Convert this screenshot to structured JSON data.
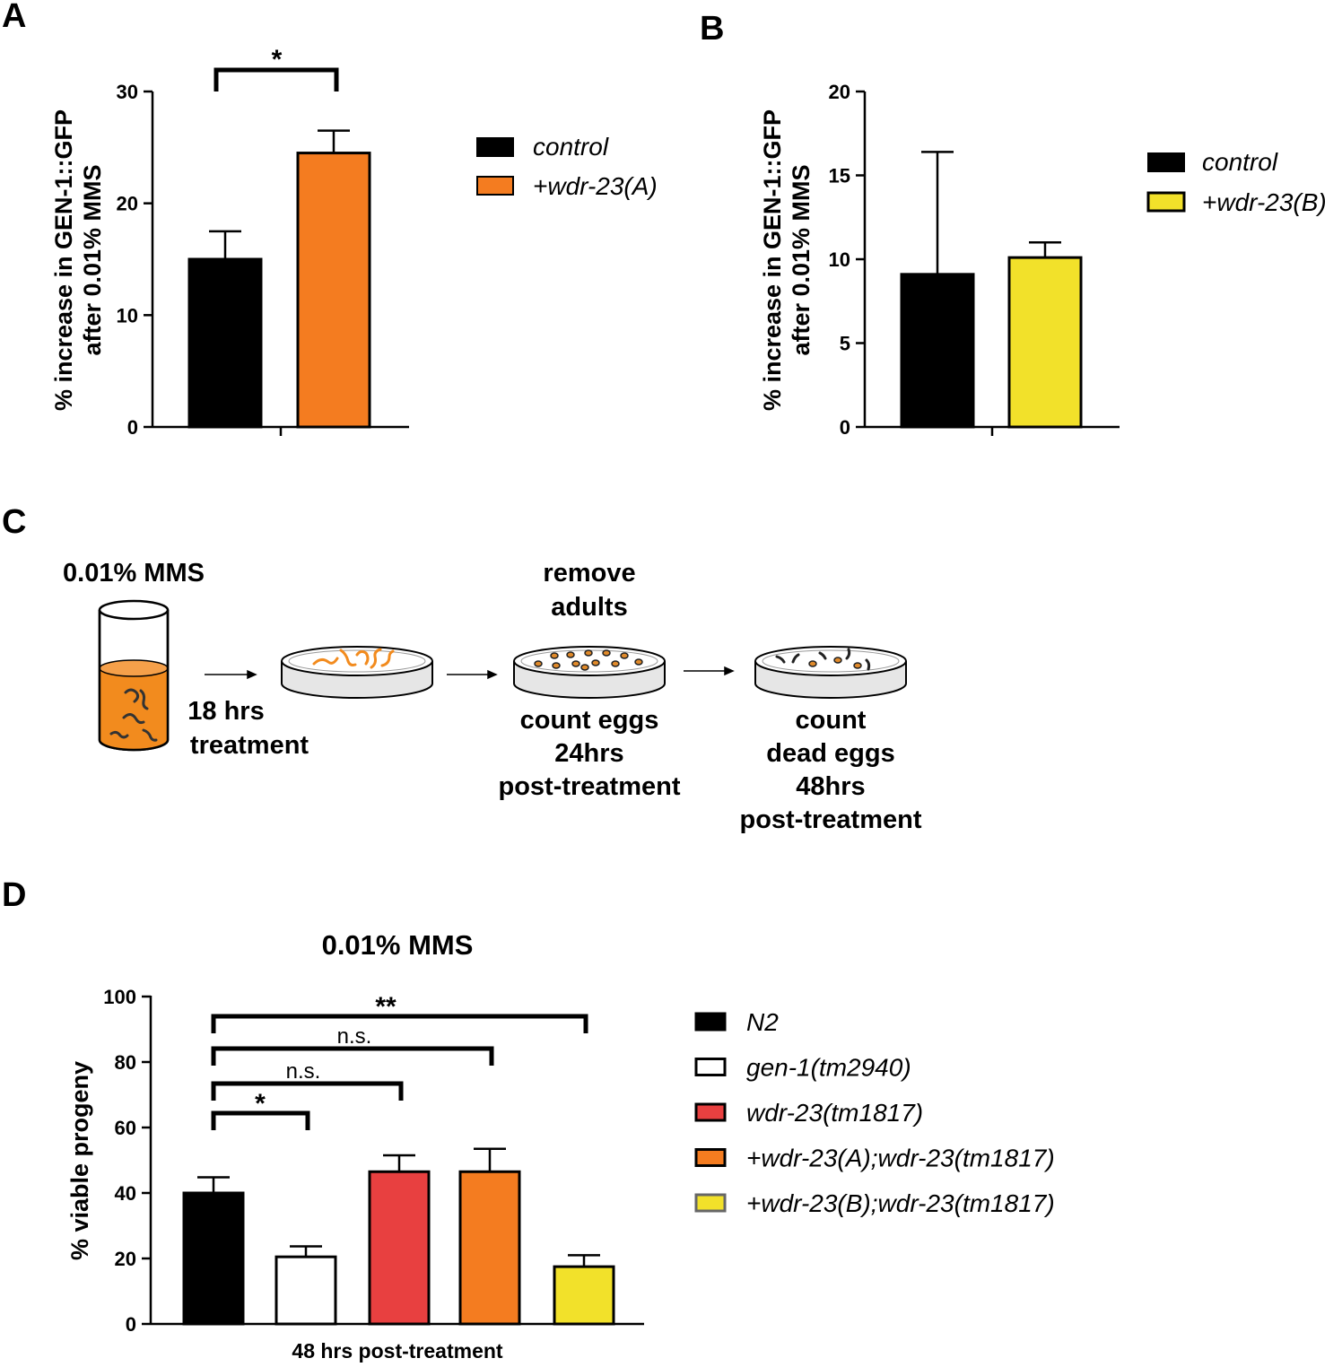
{
  "panels": {
    "a": "A",
    "b": "B",
    "c": "C",
    "d": "D"
  },
  "chart_data": [
    {
      "id": "A",
      "type": "bar",
      "ylabel_line1": "% increase in GEN-1::GFP",
      "ylabel_line2": "after 0.01% MMS",
      "ylim": [
        0,
        30
      ],
      "yticks": [
        0,
        10,
        20,
        30
      ],
      "series": [
        {
          "name": "control",
          "value": 15,
          "error": 2.5,
          "color": "#000000"
        },
        {
          "name": "+wdr-23(A)",
          "value": 24.5,
          "error": 2,
          "color": "#F47C20"
        }
      ],
      "significance": [
        {
          "from": 0,
          "to": 1,
          "label": "*"
        }
      ]
    },
    {
      "id": "B",
      "type": "bar",
      "ylabel_line1": "% increase in GEN-1::GFP",
      "ylabel_line2": "after 0.01% MMS",
      "ylim": [
        0,
        20
      ],
      "yticks": [
        0,
        5,
        10,
        15,
        20
      ],
      "series": [
        {
          "name": "control",
          "value": 9.1,
          "error": 7.3,
          "color": "#000000"
        },
        {
          "name": "+wdr-23(B)",
          "value": 10.1,
          "error": 0.9,
          "color": "#F2E12A"
        }
      ],
      "significance": []
    },
    {
      "id": "D",
      "type": "bar",
      "title": "0.01% MMS",
      "xlabel": "48 hrs post-treatment",
      "ylabel": "% viable progeny",
      "ylim": [
        0,
        100
      ],
      "yticks": [
        0,
        20,
        40,
        60,
        80,
        100
      ],
      "series": [
        {
          "name": "N2",
          "value": 40,
          "error": 4.8,
          "color": "#000000"
        },
        {
          "name": "gen-1(tm2940)",
          "value": 20.5,
          "error": 3.2,
          "color": "#ffffff"
        },
        {
          "name": "wdr-23(tm1817)",
          "value": 46.5,
          "error": 5,
          "color": "#E84040"
        },
        {
          "name": "+wdr-23(A);wdr-23(tm1817)",
          "value": 46.5,
          "error": 7,
          "color": "#F47C20"
        },
        {
          "name": "+wdr-23(B);wdr-23(tm1817)",
          "value": 17.5,
          "error": 3.5,
          "color": "#F2E12A"
        }
      ],
      "significance": [
        {
          "from": 0,
          "to": 1,
          "label": "*"
        },
        {
          "from": 0,
          "to": 2,
          "label": "n.s."
        },
        {
          "from": 0,
          "to": 3,
          "label": "n.s."
        },
        {
          "from": 0,
          "to": 4,
          "label": "**"
        }
      ]
    }
  ],
  "schematic": {
    "mms_label": "0.01% MMS",
    "treatment_line1": "18 hrs",
    "treatment_line2": "treatment",
    "remove_line1": "remove",
    "remove_line2": "adults",
    "count_eggs": [
      "count eggs",
      "24hrs",
      "post-treatment"
    ],
    "count_dead": [
      "count",
      "dead eggs",
      "48hrs",
      "post-treatment"
    ],
    "colors": {
      "medium": "#F28B1E",
      "worm_dark": "#333333",
      "plate": "#E6E6E6"
    }
  }
}
